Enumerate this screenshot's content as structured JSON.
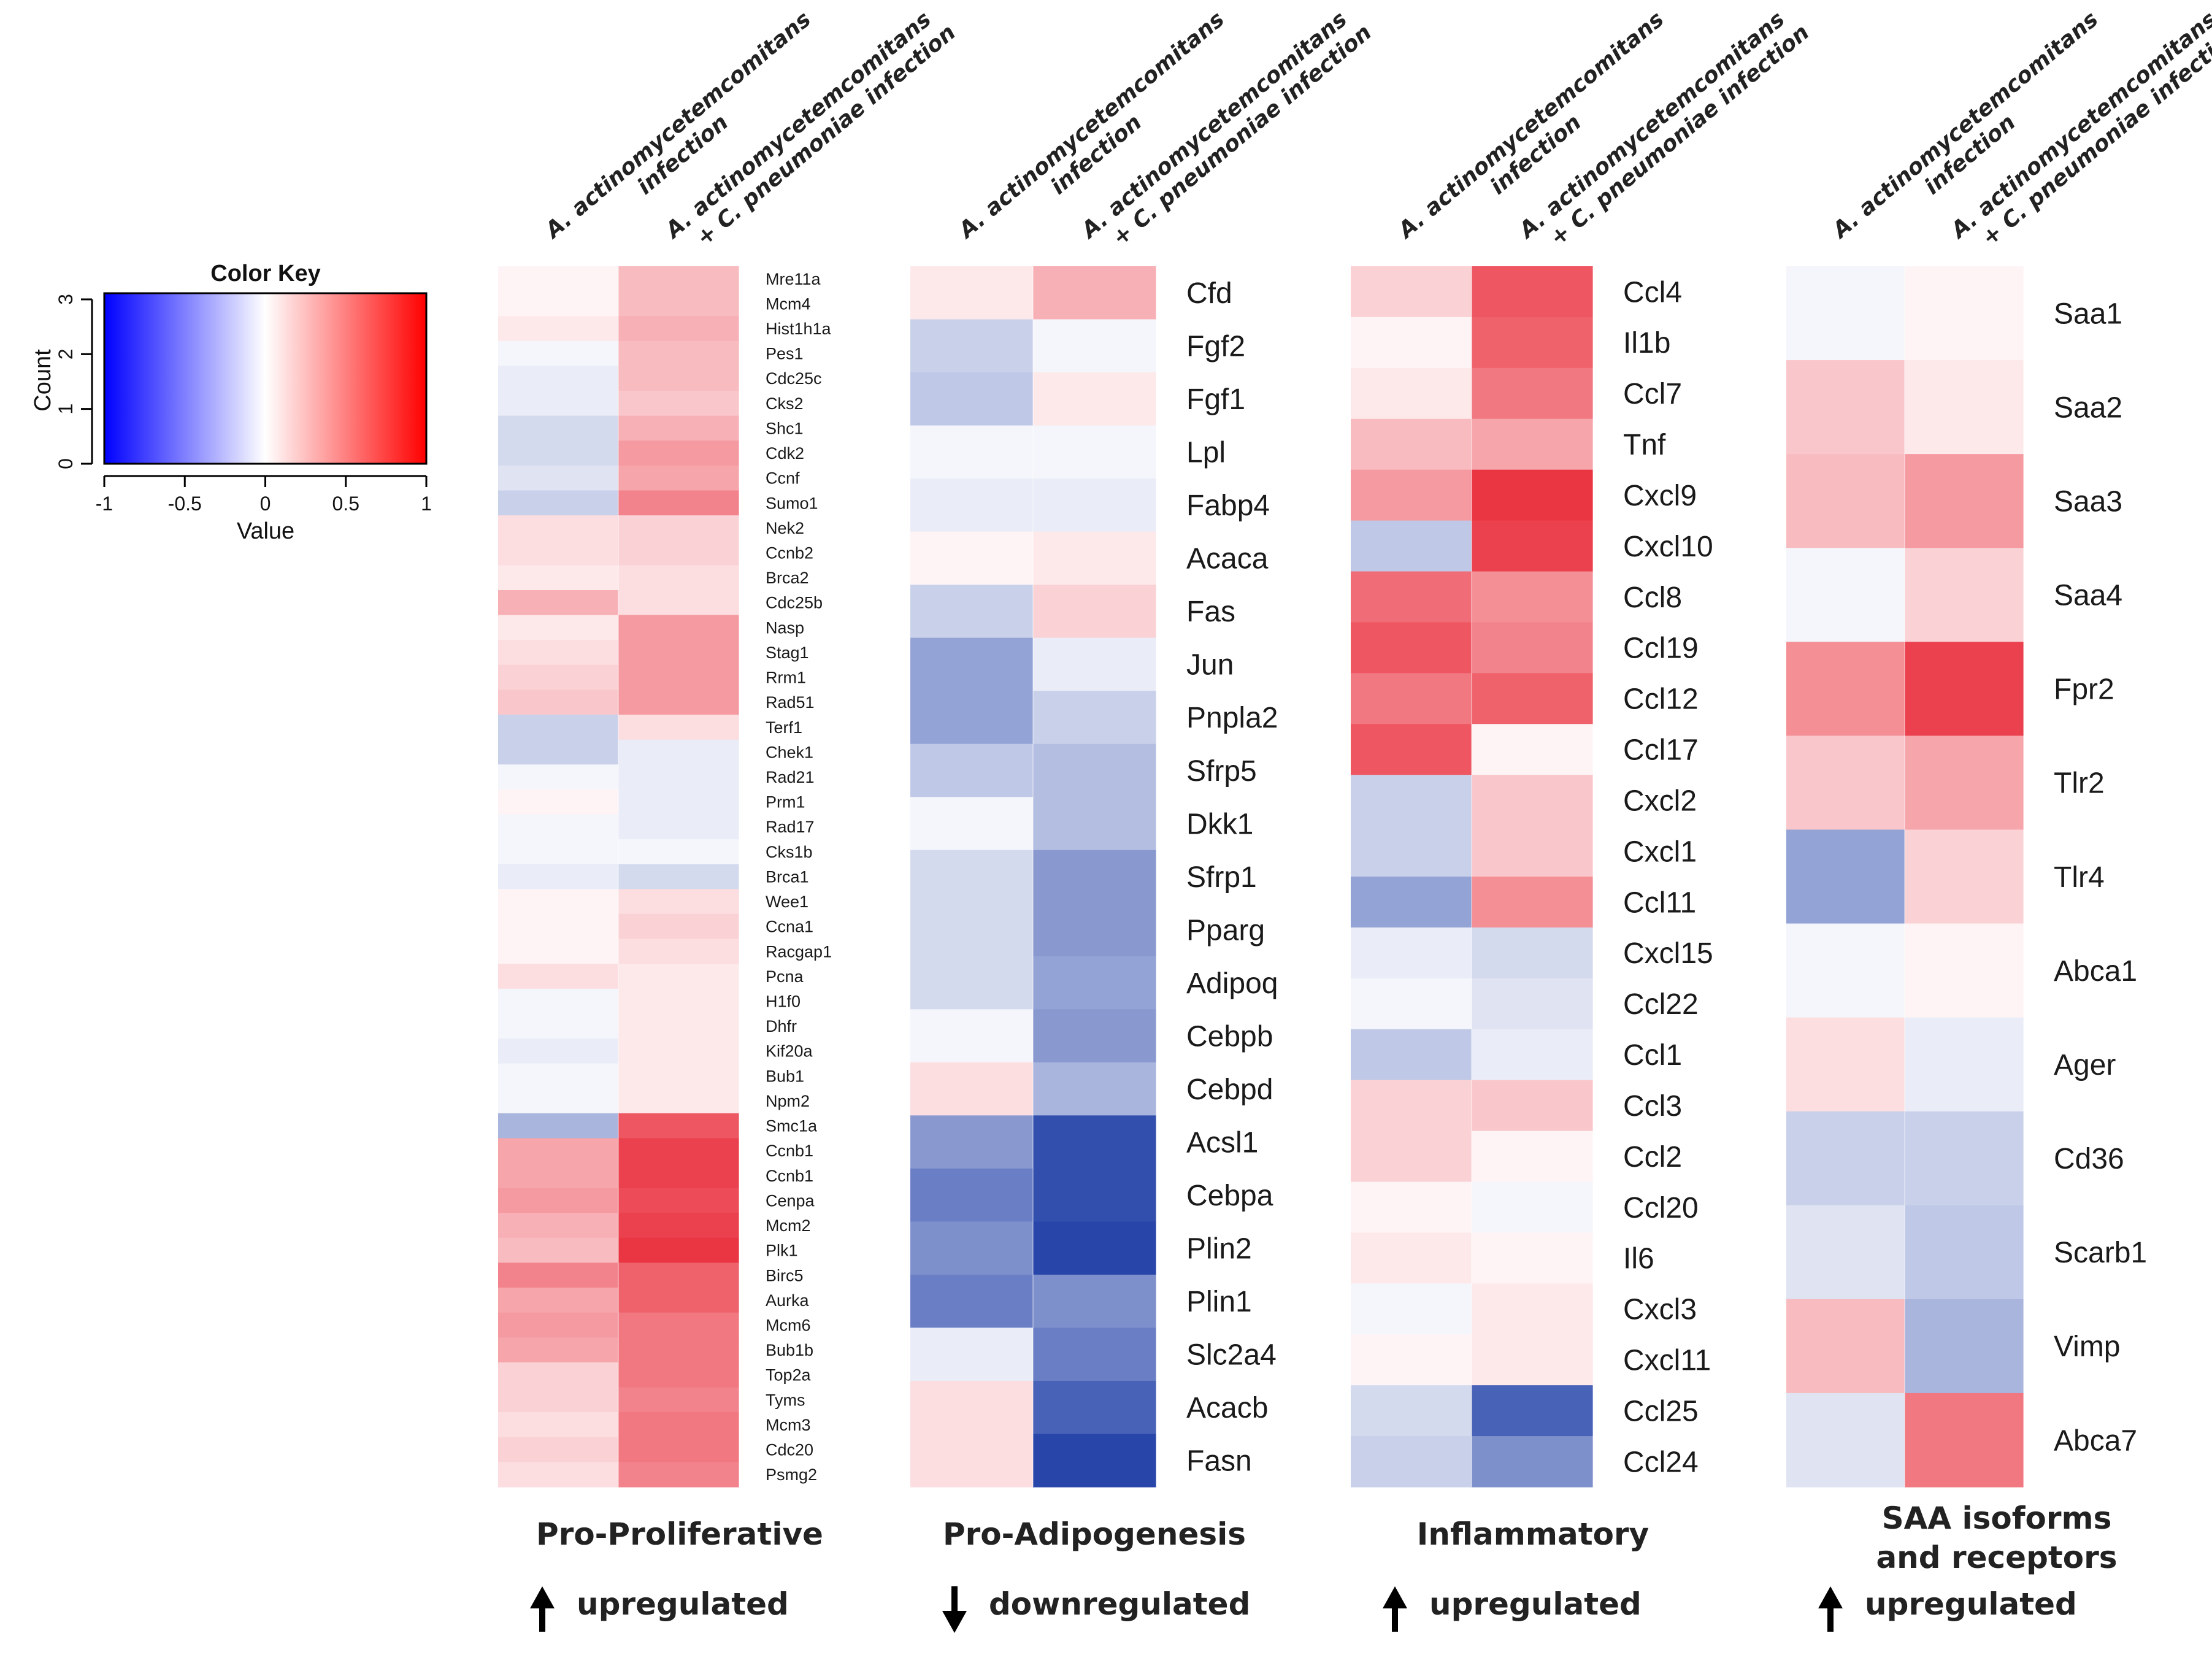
{
  "chart_data": {
    "type": "heatmap",
    "color_key": {
      "title": "Color Key",
      "xlabel": "Value",
      "ylabel": "Count",
      "x_ticks": [
        "-1",
        "-0.5",
        "0",
        "0.5",
        "1"
      ],
      "y_ticks": [
        "0",
        "1",
        "2",
        "3"
      ],
      "range": [
        -1,
        1
      ],
      "low_color": "#0000ff",
      "mid_color": "#ffffff",
      "high_color": "#ff0000"
    },
    "columns": [
      "A. actinomycetemcomitans infection",
      "A. actinomycetemcomitans + C. pneumoniae infection"
    ],
    "columns_text": {
      "a_line1": "A. actinomycetemcomitans",
      "a_line2": "infection",
      "b_line1": "A. actinomycetemcomitans",
      "b_line2": "+ C. pneumoniae infection"
    },
    "panels": [
      {
        "title": "Pro-Proliferative",
        "regulation": "upregulated",
        "direction": "up",
        "genes": [
          "Mre11a",
          "Mcm4",
          "Hist1h1a",
          "Pes1",
          "Cdc25c",
          "Cks2",
          "Shc1",
          "Cdk2",
          "Ccnf",
          "Sumo1",
          "Nek2",
          "Ccnb2",
          "Brca2",
          "Cdc25b",
          "Nasp",
          "Stag1",
          "Rrm1",
          "Rad51",
          "Terf1",
          "Chek1",
          "Rad21",
          "Prm1",
          "Rad17",
          "Cks1b",
          "Brca1",
          "Wee1",
          "Ccna1",
          "Racgap1",
          "Pcna",
          "H1f0",
          "Dhfr",
          "Kif20a",
          "Bub1",
          "Npm2",
          "Smc1a",
          "Ccnb1",
          "Ccnb1",
          "Cenpa",
          "Mcm2",
          "Plk1",
          "Birc5",
          "Aurka",
          "Mcm6",
          "Bub1b",
          "Top2a",
          "Tyms",
          "Mcm3",
          "Cdc20",
          "Psmg2"
        ],
        "values": [
          [
            0.05,
            0.3
          ],
          [
            0.05,
            0.3
          ],
          [
            0.1,
            0.35
          ],
          [
            -0.05,
            0.3
          ],
          [
            -0.1,
            0.3
          ],
          [
            -0.1,
            0.25
          ],
          [
            -0.2,
            0.35
          ],
          [
            -0.2,
            0.45
          ],
          [
            -0.15,
            0.4
          ],
          [
            -0.25,
            0.55
          ],
          [
            0.15,
            0.2
          ],
          [
            0.15,
            0.2
          ],
          [
            0.1,
            0.15
          ],
          [
            0.35,
            0.15
          ],
          [
            0.1,
            0.45
          ],
          [
            0.15,
            0.45
          ],
          [
            0.2,
            0.45
          ],
          [
            0.25,
            0.45
          ],
          [
            -0.25,
            0.15
          ],
          [
            -0.25,
            -0.1
          ],
          [
            -0.05,
            -0.1
          ],
          [
            0.05,
            -0.1
          ],
          [
            -0.05,
            -0.1
          ],
          [
            -0.05,
            -0.05
          ],
          [
            -0.1,
            -0.2
          ],
          [
            0.05,
            0.15
          ],
          [
            0.05,
            0.2
          ],
          [
            0.05,
            0.15
          ],
          [
            0.15,
            0.1
          ],
          [
            -0.05,
            0.1
          ],
          [
            -0.05,
            0.1
          ],
          [
            -0.1,
            0.1
          ],
          [
            -0.05,
            0.1
          ],
          [
            -0.05,
            0.1
          ],
          [
            -0.4,
            0.75
          ],
          [
            0.4,
            0.85
          ],
          [
            0.4,
            0.85
          ],
          [
            0.45,
            0.8
          ],
          [
            0.35,
            0.85
          ],
          [
            0.3,
            0.9
          ],
          [
            0.55,
            0.7
          ],
          [
            0.4,
            0.7
          ],
          [
            0.45,
            0.6
          ],
          [
            0.4,
            0.6
          ],
          [
            0.2,
            0.6
          ],
          [
            0.2,
            0.55
          ],
          [
            0.15,
            0.6
          ],
          [
            0.2,
            0.6
          ],
          [
            0.15,
            0.55
          ]
        ]
      },
      {
        "title": "Pro-Adipogenesis",
        "regulation": "downregulated",
        "direction": "down",
        "genes": [
          "Cfd",
          "Fgf2",
          "Fgf1",
          "Lpl",
          "Fabp4",
          "Acaca",
          "Fas",
          "Jun",
          "Pnpla2",
          "Sfrp5",
          "Dkk1",
          "Sfrp1",
          "Pparg",
          "Adipoq",
          "Cebpb",
          "Cebpd",
          "Acsl1",
          "Cebpa",
          "Plin2",
          "Plin1",
          "Slc2a4",
          "Acacb",
          "Fasn"
        ],
        "values": [
          [
            0.1,
            0.35
          ],
          [
            -0.25,
            -0.05
          ],
          [
            -0.3,
            0.1
          ],
          [
            -0.05,
            -0.05
          ],
          [
            -0.1,
            -0.1
          ],
          [
            0.05,
            0.1
          ],
          [
            -0.25,
            0.2
          ],
          [
            -0.5,
            -0.1
          ],
          [
            -0.5,
            -0.25
          ],
          [
            -0.3,
            -0.35
          ],
          [
            -0.05,
            -0.35
          ],
          [
            -0.2,
            -0.55
          ],
          [
            -0.2,
            -0.55
          ],
          [
            -0.2,
            -0.5
          ],
          [
            -0.05,
            -0.55
          ],
          [
            0.15,
            -0.4
          ],
          [
            -0.55,
            -0.95
          ],
          [
            -0.7,
            -0.95
          ],
          [
            -0.6,
            -1.0
          ],
          [
            -0.7,
            -0.6
          ],
          [
            -0.1,
            -0.7
          ],
          [
            0.15,
            -0.85
          ],
          [
            0.15,
            -1.0
          ]
        ]
      },
      {
        "title": "Inflammatory",
        "regulation": "upregulated",
        "direction": "up",
        "genes": [
          "Ccl4",
          "Il1b",
          "Ccl7",
          "Tnf",
          "Cxcl9",
          "Cxcl10",
          "Ccl8",
          "Ccl19",
          "Ccl12",
          "Ccl17",
          "Cxcl2",
          "Cxcl1",
          "Ccl11",
          "Cxcl15",
          "Ccl22",
          "Ccl1",
          "Ccl3",
          "Ccl2",
          "Ccl20",
          "Il6",
          "Cxcl3",
          "Cxcl11",
          "Ccl25",
          "Ccl24"
        ],
        "values": [
          [
            0.2,
            0.75
          ],
          [
            0.05,
            0.7
          ],
          [
            0.1,
            0.6
          ],
          [
            0.3,
            0.4
          ],
          [
            0.45,
            0.9
          ],
          [
            -0.3,
            0.85
          ],
          [
            0.65,
            0.5
          ],
          [
            0.75,
            0.55
          ],
          [
            0.6,
            0.7
          ],
          [
            0.75,
            0.05
          ],
          [
            -0.25,
            0.25
          ],
          [
            -0.25,
            0.25
          ],
          [
            -0.5,
            0.5
          ],
          [
            -0.1,
            -0.2
          ],
          [
            -0.05,
            -0.15
          ],
          [
            -0.3,
            -0.1
          ],
          [
            0.2,
            0.25
          ],
          [
            0.2,
            0.05
          ],
          [
            0.05,
            -0.05
          ],
          [
            0.1,
            0.05
          ],
          [
            -0.05,
            0.1
          ],
          [
            0.05,
            0.1
          ],
          [
            -0.2,
            -0.85
          ],
          [
            -0.25,
            -0.6
          ]
        ]
      },
      {
        "title": "SAA isoforms and receptors",
        "title_line1": "SAA isoforms",
        "title_line2": "and receptors",
        "regulation": "upregulated",
        "direction": "up",
        "genes": [
          "Saa1",
          "Saa2",
          "Saa3",
          "Saa4",
          "Fpr2",
          "Tlr2",
          "Tlr4",
          "Abca1",
          "Ager",
          "Cd36",
          "Scarb1",
          "Vimp",
          "Abca7"
        ],
        "values": [
          [
            -0.05,
            0.05
          ],
          [
            0.25,
            0.1
          ],
          [
            0.3,
            0.45
          ],
          [
            -0.05,
            0.2
          ],
          [
            0.5,
            0.85
          ],
          [
            0.25,
            0.4
          ],
          [
            -0.5,
            0.2
          ],
          [
            -0.05,
            0.05
          ],
          [
            0.15,
            -0.1
          ],
          [
            -0.25,
            -0.25
          ],
          [
            -0.15,
            -0.3
          ],
          [
            0.3,
            -0.4
          ],
          [
            -0.15,
            0.6
          ]
        ]
      }
    ]
  }
}
